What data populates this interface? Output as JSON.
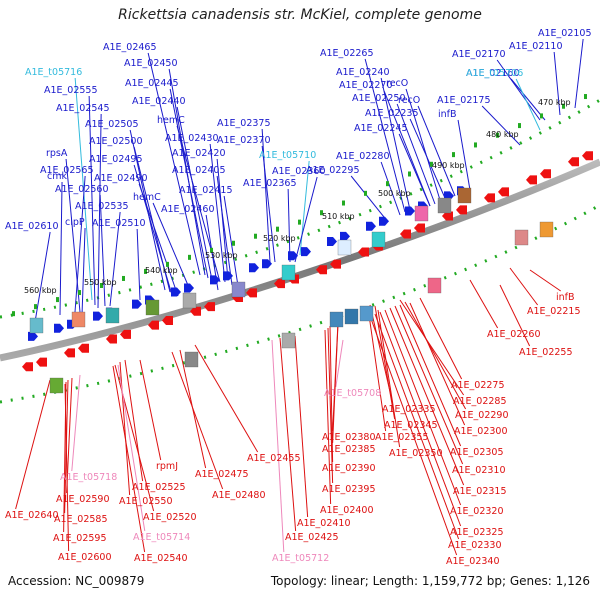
{
  "title": "Rickettsia canadensis str. McKiel, complete genome",
  "accession_label": "Accession: NC_009879",
  "summary_label": "Topology: linear; Length: 1,159,772 bp; Genes: 1,126",
  "colors": {
    "forward_label": "#1a1acc",
    "reverse_label": "#dd1111",
    "trna_forward": "#33bbdd",
    "trna_reverse": "#ee88bb",
    "backbone": "#888888",
    "tick": "#22aa22"
  },
  "kbp_ticks": [
    {
      "label": "560 kbp"
    },
    {
      "label": "550 kbp"
    },
    {
      "label": "540 kbp"
    },
    {
      "label": "530 kbp"
    },
    {
      "label": "520 kbp"
    },
    {
      "label": "510 kbp"
    },
    {
      "label": "500 kbp"
    },
    {
      "label": "490 kbp"
    },
    {
      "label": "480 kbp"
    },
    {
      "label": "470 kbp"
    }
  ],
  "top_labels": [
    {
      "text": "A1E_02465",
      "kind": "gene"
    },
    {
      "text": "A1E_02450",
      "kind": "gene"
    },
    {
      "text": "A1E_t05716",
      "kind": "trna"
    },
    {
      "text": "A1E_02445",
      "kind": "gene"
    },
    {
      "text": "A1E_02555",
      "kind": "gene"
    },
    {
      "text": "A1E_02440",
      "kind": "gene"
    },
    {
      "text": "A1E_02545",
      "kind": "gene"
    },
    {
      "text": "A1E_02505",
      "kind": "gene"
    },
    {
      "text": "hemC",
      "kind": "gene"
    },
    {
      "text": "A1E_02500",
      "kind": "gene"
    },
    {
      "text": "A1E_02430",
      "kind": "gene"
    },
    {
      "text": "A1E_02375",
      "kind": "gene"
    },
    {
      "text": "rpsA",
      "kind": "gene"
    },
    {
      "text": "A1E_02495",
      "kind": "gene"
    },
    {
      "text": "A1E_02420",
      "kind": "gene"
    },
    {
      "text": "A1E_02370",
      "kind": "gene"
    },
    {
      "text": "A1E_t05710",
      "kind": "trna"
    },
    {
      "text": "A1E_02565",
      "kind": "gene"
    },
    {
      "text": "A1E_02490",
      "kind": "gene"
    },
    {
      "text": "A1E_02405",
      "kind": "gene"
    },
    {
      "text": "A1E_02360",
      "kind": "gene"
    },
    {
      "text": "cmk",
      "kind": "gene"
    },
    {
      "text": "A1E_02560",
      "kind": "gene"
    },
    {
      "text": "A1E_02365",
      "kind": "gene"
    },
    {
      "text": "hemC",
      "kind": "gene"
    },
    {
      "text": "A1E_02415",
      "kind": "gene"
    },
    {
      "text": "A1E_02535",
      "kind": "gene"
    },
    {
      "text": "A1E_02460",
      "kind": "gene"
    },
    {
      "text": "clpP",
      "kind": "gene"
    },
    {
      "text": "A1E_02510",
      "kind": "gene"
    },
    {
      "text": "A1E_02610",
      "kind": "gene"
    },
    {
      "text": "A1E_02265",
      "kind": "gene"
    },
    {
      "text": "A1E_02240",
      "kind": "gene"
    },
    {
      "text": "A1E_02270",
      "kind": "gene"
    },
    {
      "text": "recO",
      "kind": "gene"
    },
    {
      "text": "A1E_02250",
      "kind": "gene"
    },
    {
      "text": "recO",
      "kind": "gene"
    },
    {
      "text": "A1E_02235",
      "kind": "gene"
    },
    {
      "text": "infB",
      "kind": "gene"
    },
    {
      "text": "A1E_02245",
      "kind": "gene"
    },
    {
      "text": "A1E_02280",
      "kind": "gene"
    },
    {
      "text": "A1E_02295",
      "kind": "gene"
    },
    {
      "text": "A1E_02170",
      "kind": "gene"
    },
    {
      "text": "A1E_02160",
      "kind": "gene"
    },
    {
      "text": "A1E_t05706",
      "kind": "trna"
    },
    {
      "text": "A1E_02175",
      "kind": "gene"
    },
    {
      "text": "A1E_02110",
      "kind": "gene"
    },
    {
      "text": "A1E_02105",
      "kind": "gene"
    }
  ],
  "bottom_labels": [
    {
      "text": "infB",
      "kind": "gene"
    },
    {
      "text": "A1E_02215",
      "kind": "gene"
    },
    {
      "text": "A1E_02260",
      "kind": "gene"
    },
    {
      "text": "A1E_02255",
      "kind": "gene"
    },
    {
      "text": "A1E_t05708",
      "kind": "trna"
    },
    {
      "text": "A1E_02275",
      "kind": "gene"
    },
    {
      "text": "A1E_02285",
      "kind": "gene"
    },
    {
      "text": "A1E_02335",
      "kind": "gene"
    },
    {
      "text": "A1E_02290",
      "kind": "gene"
    },
    {
      "text": "A1E_02345",
      "kind": "gene"
    },
    {
      "text": "A1E_02300",
      "kind": "gene"
    },
    {
      "text": "A1E_02380",
      "kind": "gene"
    },
    {
      "text": "A1E_02355",
      "kind": "gene"
    },
    {
      "text": "A1E_02385",
      "kind": "gene"
    },
    {
      "text": "A1E_02305",
      "kind": "gene"
    },
    {
      "text": "A1E_02350",
      "kind": "gene"
    },
    {
      "text": "A1E_02455",
      "kind": "gene"
    },
    {
      "text": "A1E_02390",
      "kind": "gene"
    },
    {
      "text": "A1E_02310",
      "kind": "gene"
    },
    {
      "text": "rpmJ",
      "kind": "gene"
    },
    {
      "text": "A1E_02475",
      "kind": "gene"
    },
    {
      "text": "A1E_t05718",
      "kind": "trna"
    },
    {
      "text": "A1E_02525",
      "kind": "gene"
    },
    {
      "text": "A1E_02395",
      "kind": "gene"
    },
    {
      "text": "A1E_02315",
      "kind": "gene"
    },
    {
      "text": "A1E_02590",
      "kind": "gene"
    },
    {
      "text": "A1E_02480",
      "kind": "gene"
    },
    {
      "text": "A1E_02550",
      "kind": "gene"
    },
    {
      "text": "A1E_02400",
      "kind": "gene"
    },
    {
      "text": "A1E_02320",
      "kind": "gene"
    },
    {
      "text": "A1E_02640",
      "kind": "gene"
    },
    {
      "text": "A1E_02585",
      "kind": "gene"
    },
    {
      "text": "A1E_02520",
      "kind": "gene"
    },
    {
      "text": "A1E_02410",
      "kind": "gene"
    },
    {
      "text": "A1E_02325",
      "kind": "gene"
    },
    {
      "text": "A1E_02595",
      "kind": "gene"
    },
    {
      "text": "A1E_t05714",
      "kind": "trna"
    },
    {
      "text": "A1E_02425",
      "kind": "gene"
    },
    {
      "text": "A1E_02330",
      "kind": "gene"
    },
    {
      "text": "A1E_02600",
      "kind": "gene"
    },
    {
      "text": "A1E_02540",
      "kind": "gene"
    },
    {
      "text": "A1E_t05712",
      "kind": "trna"
    },
    {
      "text": "A1E_02340",
      "kind": "gene"
    }
  ]
}
